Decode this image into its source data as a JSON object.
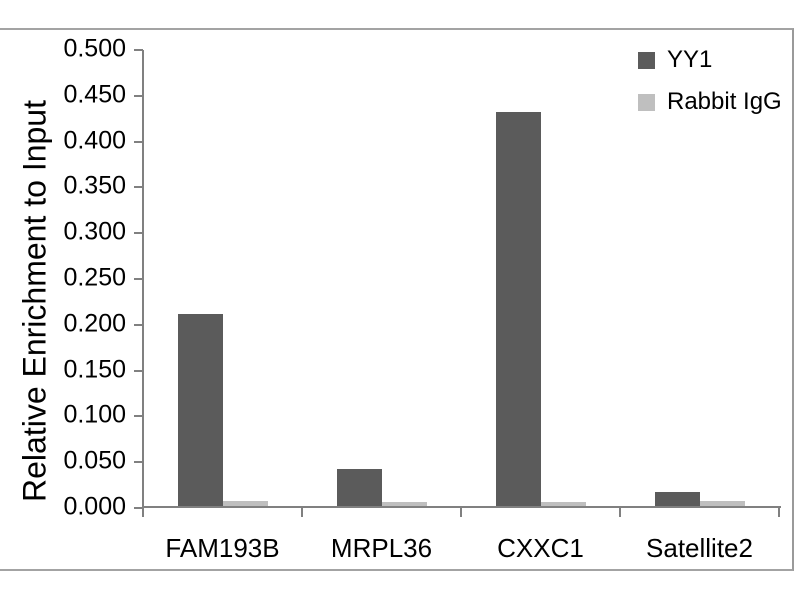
{
  "chart_data": {
    "type": "bar",
    "title": "",
    "xlabel": "",
    "ylabel": "Relative Enrichment to Input",
    "categories": [
      "FAM193B",
      "MRPL36",
      "CXXC1",
      "Satellite2"
    ],
    "series": [
      {
        "name": "YY1",
        "color": "#5b5b5b",
        "values": [
          0.21,
          0.04,
          0.43,
          0.015
        ]
      },
      {
        "name": "Rabbit IgG",
        "color": "#bfbfbf",
        "values": [
          0.005,
          0.004,
          0.004,
          0.005
        ]
      }
    ],
    "ylim": [
      0,
      0.5
    ],
    "ytick_step": 0.05,
    "ytick_labels": [
      "0.500",
      "0.450",
      "0.400",
      "0.350",
      "0.300",
      "0.250",
      "0.200",
      "0.150",
      "0.100",
      "0.050",
      "0.000"
    ],
    "legend_position": "top-right",
    "legend_entries": [
      "YY1",
      "Rabbit IgG"
    ],
    "grid": false
  },
  "colors": {
    "background": "#ffffff",
    "axis": "#808080",
    "frame": "#a3a3a3",
    "text": "#000000"
  }
}
